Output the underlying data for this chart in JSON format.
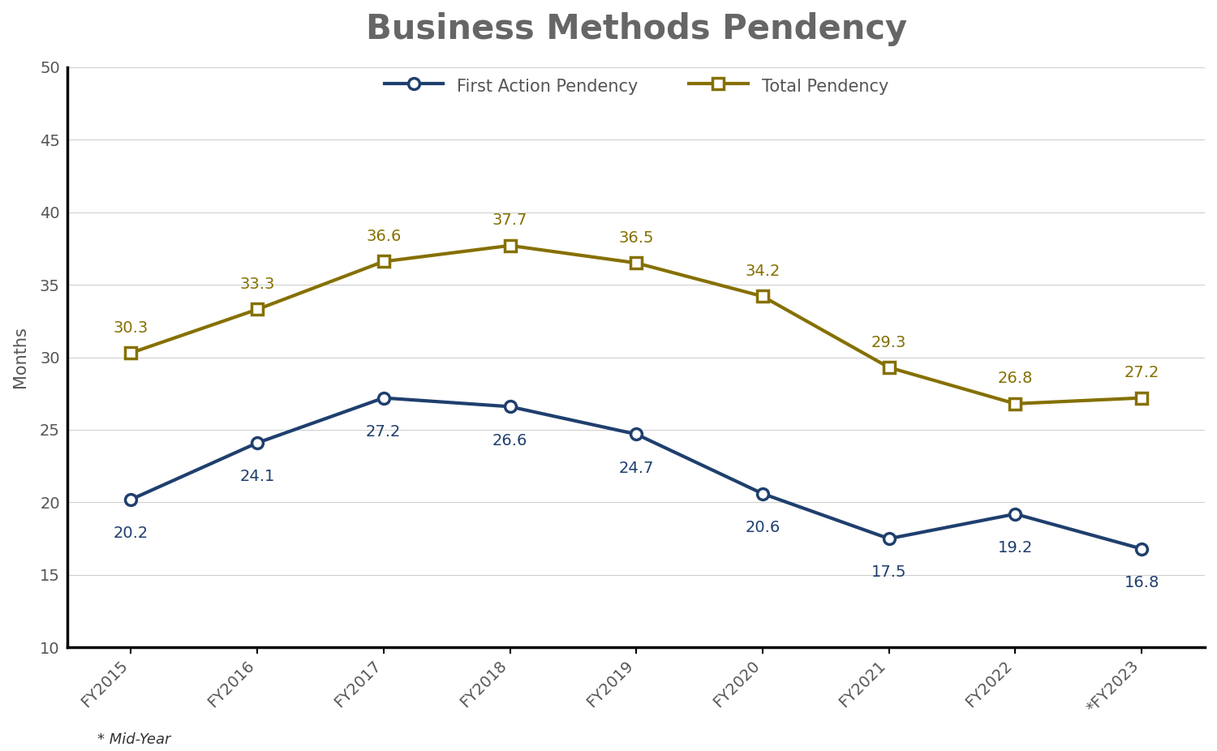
{
  "title": "Business Methods Pendency",
  "ylabel": "Months",
  "footnote": "* Mid-Year",
  "categories": [
    "FY2015",
    "FY2016",
    "FY2017",
    "FY2018",
    "FY2019",
    "FY2020",
    "FY2021",
    "FY2022",
    "*FY2023"
  ],
  "first_action": [
    20.2,
    24.1,
    27.2,
    26.6,
    24.7,
    20.6,
    17.5,
    19.2,
    16.8
  ],
  "total_pendency": [
    30.3,
    33.3,
    36.6,
    37.7,
    36.5,
    34.2,
    29.3,
    26.8,
    27.2
  ],
  "first_action_color": "#1F3F6E",
  "total_pendency_color": "#857000",
  "ylim_min": 10,
  "ylim_max": 50,
  "yticks": [
    10,
    15,
    20,
    25,
    30,
    35,
    40,
    45,
    50
  ],
  "background_color": "#ffffff",
  "grid_color": "#d0d0d0",
  "title_fontsize": 30,
  "label_fontsize": 15,
  "tick_fontsize": 14,
  "annotation_fontsize": 14,
  "legend_fontsize": 15,
  "line_width": 3.0,
  "marker_size": 10
}
